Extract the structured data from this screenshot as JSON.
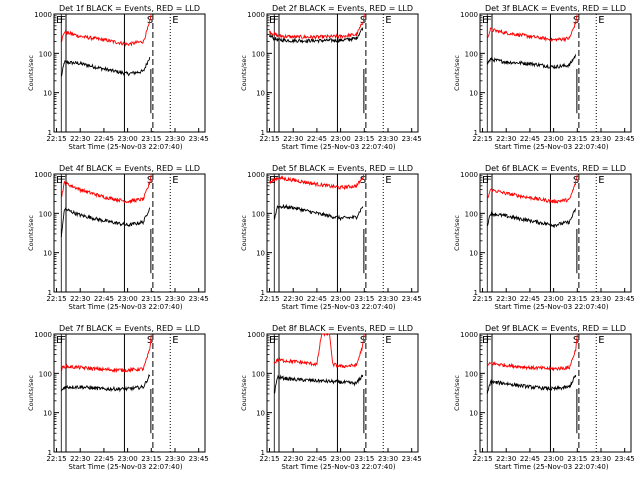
{
  "figure": {
    "x_tick_labels": [
      "22:15",
      "22:30",
      "22:45",
      "23:00",
      "23:15",
      "23:30",
      "23:45"
    ],
    "x_label": "Start Time (25-Nov-03 22:07:40)",
    "y_label": "Counts/sec",
    "y_tick_labels": [
      "1",
      "10",
      "100",
      "1000"
    ],
    "marker_labels": [
      "E",
      "F",
      "S",
      "E"
    ],
    "colors": {
      "events": "#000000",
      "lld": "#ff0000"
    }
  },
  "chart_data": [
    {
      "type": "line",
      "title": "Det 1f BLACK = Events, RED = LLD",
      "ylabel": "Counts/sec",
      "xlabel": "Start Time (25-Nov-03 22:07:40)",
      "ylim": [
        1,
        1000
      ],
      "yscale": "log",
      "series": [
        {
          "name": "Events",
          "color": "#000000",
          "points": [
            [
              "22:18",
              25
            ],
            [
              "22:20",
              60
            ],
            [
              "22:30",
              55
            ],
            [
              "22:45",
              40
            ],
            [
              "23:00",
              30
            ],
            [
              "23:10",
              35
            ],
            [
              "23:14",
              80
            ]
          ]
        },
        {
          "name": "LLD",
          "color": "#ff0000",
          "points": [
            [
              "22:18",
              200
            ],
            [
              "22:20",
              350
            ],
            [
              "22:30",
              270
            ],
            [
              "22:45",
              220
            ],
            [
              "23:00",
              170
            ],
            [
              "23:10",
              200
            ],
            [
              "23:14",
              600
            ],
            [
              "23:15",
              1000
            ]
          ]
        }
      ]
    },
    {
      "type": "line",
      "title": "Det 2f BLACK = Events, RED = LLD",
      "ylabel": "Counts/sec",
      "xlabel": "Start Time (25-Nov-03 22:07:40)",
      "ylim": [
        1,
        1000
      ],
      "yscale": "log",
      "series": [
        {
          "name": "Events",
          "color": "#000000",
          "points": [
            [
              "22:15",
              280
            ],
            [
              "22:20",
              220
            ],
            [
              "22:30",
              210
            ],
            [
              "22:45",
              210
            ],
            [
              "23:00",
              215
            ],
            [
              "23:10",
              240
            ],
            [
              "23:14",
              450
            ]
          ]
        },
        {
          "name": "LLD",
          "color": "#ff0000",
          "points": [
            [
              "22:15",
              350
            ],
            [
              "22:20",
              280
            ],
            [
              "22:30",
              260
            ],
            [
              "22:45",
              260
            ],
            [
              "23:00",
              270
            ],
            [
              "23:10",
              300
            ],
            [
              "23:14",
              600
            ],
            [
              "23:15",
              1000
            ]
          ]
        }
      ]
    },
    {
      "type": "line",
      "title": "Det 3f BLACK = Events, RED = LLD",
      "ylabel": "Counts/sec",
      "xlabel": "Start Time (25-Nov-03 22:07:40)",
      "ylim": [
        1,
        1000
      ],
      "yscale": "log",
      "series": [
        {
          "name": "Events",
          "color": "#000000",
          "points": [
            [
              "22:18",
              55
            ],
            [
              "22:20",
              70
            ],
            [
              "22:30",
              60
            ],
            [
              "22:45",
              55
            ],
            [
              "23:00",
              45
            ],
            [
              "23:10",
              50
            ],
            [
              "23:14",
              90
            ]
          ]
        },
        {
          "name": "LLD",
          "color": "#ff0000",
          "points": [
            [
              "22:18",
              250
            ],
            [
              "22:20",
              400
            ],
            [
              "22:30",
              330
            ],
            [
              "22:45",
              270
            ],
            [
              "23:00",
              220
            ],
            [
              "23:10",
              240
            ],
            [
              "23:14",
              600
            ],
            [
              "23:15",
              1000
            ]
          ]
        }
      ]
    },
    {
      "type": "line",
      "title": "Det 4f BLACK = Events, RED = LLD",
      "ylabel": "Counts/sec",
      "xlabel": "Start Time (25-Nov-03 22:07:40)",
      "ylim": [
        1,
        1000
      ],
      "yscale": "log",
      "series": [
        {
          "name": "Events",
          "color": "#000000",
          "points": [
            [
              "22:18",
              25
            ],
            [
              "22:20",
              130
            ],
            [
              "22:30",
              90
            ],
            [
              "22:45",
              65
            ],
            [
              "23:00",
              50
            ],
            [
              "23:10",
              60
            ],
            [
              "23:14",
              140
            ]
          ]
        },
        {
          "name": "LLD",
          "color": "#ff0000",
          "points": [
            [
              "22:18",
              250
            ],
            [
              "22:20",
              600
            ],
            [
              "22:30",
              400
            ],
            [
              "22:45",
              260
            ],
            [
              "23:00",
              200
            ],
            [
              "23:10",
              230
            ],
            [
              "23:14",
              600
            ],
            [
              "23:15",
              1000
            ]
          ]
        }
      ]
    },
    {
      "type": "line",
      "title": "Det 5f BLACK = Events, RED = LLD",
      "ylabel": "Counts/sec",
      "xlabel": "Start Time (25-Nov-03 22:07:40)",
      "ylim": [
        1,
        1000
      ],
      "yscale": "log",
      "series": [
        {
          "name": "Events",
          "color": "#000000",
          "points": [
            [
              "22:18",
              70
            ],
            [
              "22:20",
              150
            ],
            [
              "22:30",
              140
            ],
            [
              "22:45",
              100
            ],
            [
              "23:00",
              75
            ],
            [
              "23:10",
              80
            ],
            [
              "23:14",
              150
            ]
          ]
        },
        {
          "name": "LLD",
          "color": "#ff0000",
          "points": [
            [
              "22:15",
              600
            ],
            [
              "22:20",
              800
            ],
            [
              "22:30",
              700
            ],
            [
              "22:45",
              550
            ],
            [
              "23:00",
              450
            ],
            [
              "23:10",
              500
            ],
            [
              "23:14",
              800
            ],
            [
              "23:15",
              1000
            ]
          ]
        }
      ]
    },
    {
      "type": "line",
      "title": "Det 6f BLACK = Events, RED = LLD",
      "ylabel": "Counts/sec",
      "xlabel": "Start Time (25-Nov-03 22:07:40)",
      "ylim": [
        1,
        1000
      ],
      "yscale": "log",
      "series": [
        {
          "name": "Events",
          "color": "#000000",
          "points": [
            [
              "22:18",
              50
            ],
            [
              "22:20",
              100
            ],
            [
              "22:30",
              85
            ],
            [
              "22:45",
              65
            ],
            [
              "23:00",
              50
            ],
            [
              "23:10",
              60
            ],
            [
              "23:14",
              130
            ]
          ]
        },
        {
          "name": "LLD",
          "color": "#ff0000",
          "points": [
            [
              "22:18",
              220
            ],
            [
              "22:20",
              400
            ],
            [
              "22:30",
              320
            ],
            [
              "22:45",
              250
            ],
            [
              "23:00",
              200
            ],
            [
              "23:10",
              220
            ],
            [
              "23:14",
              600
            ],
            [
              "23:15",
              1000
            ]
          ]
        }
      ]
    },
    {
      "type": "line",
      "title": "Det 7f BLACK = Events, RED = LLD",
      "ylabel": "Counts/sec",
      "xlabel": "Start Time (25-Nov-03 22:07:40)",
      "ylim": [
        1,
        1000
      ],
      "yscale": "log",
      "series": [
        {
          "name": "Events",
          "color": "#000000",
          "points": [
            [
              "22:18",
              35
            ],
            [
              "22:20",
              45
            ],
            [
              "22:30",
              45
            ],
            [
              "22:45",
              40
            ],
            [
              "23:00",
              40
            ],
            [
              "23:10",
              45
            ],
            [
              "23:14",
              90
            ]
          ]
        },
        {
          "name": "LLD",
          "color": "#ff0000",
          "points": [
            [
              "22:18",
              130
            ],
            [
              "22:20",
              150
            ],
            [
              "22:30",
              140
            ],
            [
              "22:45",
              125
            ],
            [
              "23:00",
              120
            ],
            [
              "23:10",
              130
            ],
            [
              "23:14",
              400
            ],
            [
              "23:15",
              1000
            ]
          ]
        }
      ]
    },
    {
      "type": "line",
      "title": "Det 8f BLACK = Events, RED = LLD",
      "ylabel": "Counts/sec",
      "xlabel": "Start Time (25-Nov-03 22:07:40)",
      "ylim": [
        1,
        1000
      ],
      "yscale": "log",
      "series": [
        {
          "name": "Events",
          "color": "#000000",
          "points": [
            [
              "22:18",
              30
            ],
            [
              "22:20",
              80
            ],
            [
              "22:30",
              70
            ],
            [
              "22:45",
              65
            ],
            [
              "23:00",
              60
            ],
            [
              "23:10",
              55
            ],
            [
              "23:14",
              90
            ]
          ]
        },
        {
          "name": "LLD",
          "color": "#ff0000",
          "points": [
            [
              "22:18",
              180
            ],
            [
              "22:20",
              220
            ],
            [
              "22:30",
              200
            ],
            [
              "22:45",
              170
            ],
            [
              "22:48",
              1000
            ],
            [
              "22:53",
              1000
            ],
            [
              "22:55",
              170
            ],
            [
              "23:00",
              150
            ],
            [
              "23:10",
              160
            ],
            [
              "23:14",
              500
            ],
            [
              "23:15",
              1000
            ]
          ]
        }
      ]
    },
    {
      "type": "line",
      "title": "Det 9f BLACK = Events, RED = LLD",
      "ylabel": "Counts/sec",
      "xlabel": "Start Time (25-Nov-03 22:07:40)",
      "ylim": [
        1,
        1000
      ],
      "yscale": "log",
      "series": [
        {
          "name": "Events",
          "color": "#000000",
          "points": [
            [
              "22:18",
              30
            ],
            [
              "22:20",
              60
            ],
            [
              "22:30",
              55
            ],
            [
              "22:45",
              45
            ],
            [
              "23:00",
              40
            ],
            [
              "23:10",
              45
            ],
            [
              "23:14",
              90
            ]
          ]
        },
        {
          "name": "LLD",
          "color": "#ff0000",
          "points": [
            [
              "22:18",
              150
            ],
            [
              "22:20",
              180
            ],
            [
              "22:30",
              160
            ],
            [
              "22:45",
              140
            ],
            [
              "23:00",
              130
            ],
            [
              "23:10",
              140
            ],
            [
              "23:14",
              400
            ],
            [
              "23:15",
              1000
            ]
          ]
        }
      ]
    }
  ]
}
